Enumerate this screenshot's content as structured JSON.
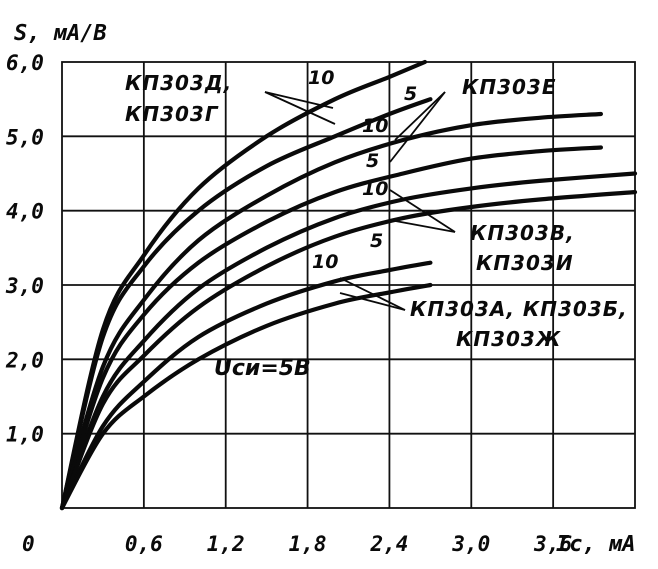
{
  "chart_data": {
    "type": "line",
    "ylabel": "S, мА/В",
    "xlabel": "Iс, мА",
    "xlim": [
      0,
      4.2
    ],
    "ylim": [
      0,
      6.0
    ],
    "x_ticks": [
      "0",
      "0,6",
      "1,2",
      "1,8",
      "2,4",
      "3,0",
      "3,6"
    ],
    "y_ticks": [
      "1,0",
      "2,0",
      "3,0",
      "4,0",
      "5,0",
      "6,0"
    ],
    "grid": true,
    "annotation": "Uси=5В",
    "groups": [
      {
        "label": [
          "КП303Д,",
          "КП303Г"
        ]
      },
      {
        "label": [
          "КП303Е"
        ]
      },
      {
        "label": [
          "КП303В,",
          "КП303И"
        ]
      },
      {
        "label": [
          "КП303А, КП303Б,",
          "КП303Ж"
        ]
      }
    ],
    "series": [
      {
        "name": "10",
        "x": [
          0,
          0.3,
          0.6,
          1.0,
          1.5,
          2.0,
          2.4,
          2.66
        ],
        "y": [
          0,
          2.4,
          3.4,
          4.3,
          5.0,
          5.5,
          5.8,
          6.0
        ]
      },
      {
        "name": "5",
        "x": [
          0,
          0.3,
          0.6,
          1.0,
          1.5,
          2.0,
          2.4,
          2.7
        ],
        "y": [
          0,
          2.3,
          3.25,
          4.0,
          4.6,
          5.0,
          5.3,
          5.5
        ]
      },
      {
        "name": "10",
        "x": [
          0,
          0.3,
          0.6,
          1.0,
          1.5,
          2.0,
          2.5,
          3.0,
          3.5,
          3.95
        ],
        "y": [
          0,
          1.9,
          2.8,
          3.6,
          4.2,
          4.65,
          4.95,
          5.15,
          5.25,
          5.3
        ]
      },
      {
        "name": "5",
        "x": [
          0,
          0.3,
          0.6,
          1.0,
          1.5,
          2.0,
          2.5,
          3.0,
          3.5,
          3.95
        ],
        "y": [
          0,
          1.75,
          2.6,
          3.3,
          3.85,
          4.25,
          4.5,
          4.7,
          4.8,
          4.85
        ]
      },
      {
        "name": "10",
        "x": [
          0,
          0.3,
          0.6,
          1.0,
          1.5,
          2.0,
          2.5,
          3.0,
          3.5,
          4.2
        ],
        "y": [
          0,
          1.5,
          2.25,
          2.95,
          3.5,
          3.9,
          4.15,
          4.3,
          4.4,
          4.5
        ]
      },
      {
        "name": "5",
        "x": [
          0,
          0.3,
          0.6,
          1.0,
          1.5,
          2.0,
          2.5,
          3.0,
          3.5,
          4.2
        ],
        "y": [
          0,
          1.4,
          2.05,
          2.7,
          3.25,
          3.65,
          3.9,
          4.05,
          4.15,
          4.25
        ]
      },
      {
        "name": "10",
        "x": [
          0,
          0.3,
          0.6,
          1.0,
          1.5,
          2.0,
          2.4,
          2.7
        ],
        "y": [
          0,
          1.1,
          1.7,
          2.3,
          2.75,
          3.05,
          3.2,
          3.3
        ]
      },
      {
        "name": "5",
        "x": [
          0,
          0.3,
          0.6,
          1.0,
          1.5,
          2.0,
          2.4,
          2.7
        ],
        "y": [
          0,
          1.0,
          1.5,
          2.0,
          2.45,
          2.75,
          2.9,
          3.0
        ]
      }
    ]
  }
}
